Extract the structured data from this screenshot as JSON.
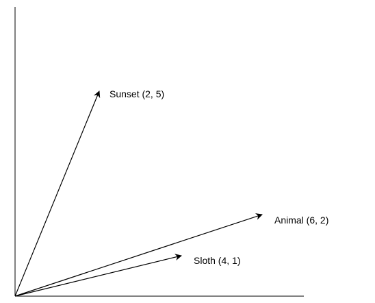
{
  "vectors": [
    {
      "label": "Sunset (2, 5)",
      "x": 2,
      "y": 5
    },
    {
      "label": "Animal (6, 2)",
      "x": 6,
      "y": 2
    },
    {
      "label": "Sloth (4, 1)",
      "x": 4,
      "y": 1
    }
  ],
  "colors": {
    "stroke": "#000000",
    "background": "#ffffff"
  }
}
